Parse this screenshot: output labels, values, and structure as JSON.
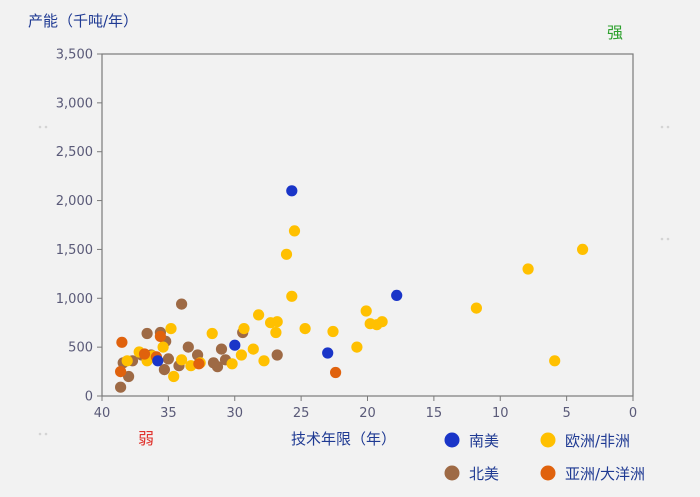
{
  "chart_data": {
    "type": "scatter",
    "title": "",
    "ylabel": "产能（千吨/年）",
    "xlabel": "技术年限（年）",
    "xlim": [
      40,
      0
    ],
    "ylim": [
      0,
      3500
    ],
    "x_ticks": [
      "40",
      "35",
      "30",
      "25",
      "20",
      "15",
      "10",
      "5",
      "0"
    ],
    "y_ticks": [
      "0",
      "500",
      "1,000",
      "1,500",
      "2,000",
      "2,500",
      "3,000",
      "3,500"
    ],
    "annotations": {
      "strong": "强",
      "weak": "弱"
    },
    "legend_position": "bottom-right",
    "series": [
      {
        "name": "南美",
        "color": "#1a35c8",
        "points": [
          [
            25.7,
            2100
          ],
          [
            17.8,
            1030
          ],
          [
            23.0,
            440
          ],
          [
            30.0,
            520
          ],
          [
            35.8,
            360
          ]
        ]
      },
      {
        "name": "欧洲/非洲",
        "color": "#ffc000",
        "points": [
          [
            3.8,
            1500
          ],
          [
            7.9,
            1300
          ],
          [
            11.8,
            900
          ],
          [
            5.9,
            360
          ],
          [
            25.5,
            1690
          ],
          [
            26.1,
            1450
          ],
          [
            25.7,
            1020
          ],
          [
            20.1,
            870
          ],
          [
            19.8,
            740
          ],
          [
            19.3,
            730
          ],
          [
            18.9,
            760
          ],
          [
            22.6,
            660
          ],
          [
            20.8,
            500
          ],
          [
            24.7,
            690
          ],
          [
            26.8,
            760
          ],
          [
            27.3,
            750
          ],
          [
            28.2,
            830
          ],
          [
            26.9,
            650
          ],
          [
            29.3,
            690
          ],
          [
            27.8,
            360
          ],
          [
            28.6,
            480
          ],
          [
            29.5,
            420
          ],
          [
            30.2,
            330
          ],
          [
            31.7,
            640
          ],
          [
            32.6,
            340
          ],
          [
            33.3,
            310
          ],
          [
            34.0,
            370
          ],
          [
            34.6,
            200
          ],
          [
            34.8,
            690
          ],
          [
            35.4,
            500
          ],
          [
            36.2,
            410
          ],
          [
            36.6,
            360
          ],
          [
            37.2,
            450
          ],
          [
            38.1,
            360
          ]
        ]
      },
      {
        "name": "北美",
        "color": "#9e6a45",
        "points": [
          [
            34.0,
            940
          ],
          [
            26.8,
            420
          ],
          [
            29.4,
            650
          ],
          [
            31.0,
            480
          ],
          [
            31.3,
            300
          ],
          [
            32.8,
            420
          ],
          [
            33.5,
            500
          ],
          [
            34.2,
            310
          ],
          [
            35.0,
            380
          ],
          [
            35.2,
            560
          ],
          [
            35.6,
            650
          ],
          [
            35.3,
            270
          ],
          [
            36.3,
            420
          ],
          [
            36.6,
            640
          ],
          [
            37.7,
            360
          ],
          [
            38.0,
            200
          ],
          [
            38.4,
            340
          ],
          [
            38.6,
            90
          ],
          [
            30.7,
            370
          ],
          [
            31.6,
            340
          ],
          [
            37.0,
            420
          ]
        ]
      },
      {
        "name": "亚洲/大洋洲",
        "color": "#e0620d",
        "points": [
          [
            38.5,
            550
          ],
          [
            38.6,
            250
          ],
          [
            35.6,
            610
          ],
          [
            22.4,
            240
          ],
          [
            32.7,
            330
          ],
          [
            36.8,
            430
          ],
          [
            35.9,
            400
          ]
        ]
      }
    ]
  }
}
